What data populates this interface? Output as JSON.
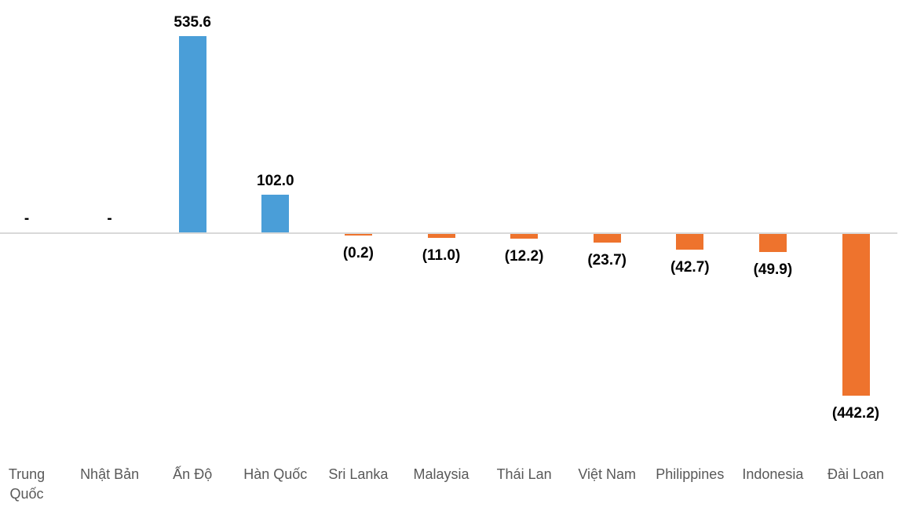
{
  "chart_data": {
    "type": "bar",
    "title": "",
    "categories": [
      "Trung\nQuốc",
      "Nhật Bản",
      "Ấn Độ",
      "Hàn Quốc",
      "Sri Lanka",
      "Malaysia",
      "Thái Lan",
      "Việt Nam",
      "Philippines",
      "Indonesia",
      "Đài Loan"
    ],
    "values": [
      null,
      null,
      535.6,
      102.0,
      -0.2,
      -11.0,
      -12.2,
      -23.7,
      -42.7,
      -49.9,
      -442.2
    ],
    "value_labels": [
      "-",
      "-",
      "535.6",
      "102.0",
      "(0.2)",
      "(11.0)",
      "(12.2)",
      "(23.7)",
      "(42.7)",
      "(49.9)",
      "(442.2)"
    ],
    "missing_placeholder": "-",
    "positive_color": "#4A9ED8",
    "negative_color": "#EE732D",
    "axis_color": "#D9D9D9",
    "value_label_color": "#000000",
    "category_label_color": "#595959",
    "background_color": "#ffffff",
    "xlabel": "",
    "ylabel": "",
    "y_axis_visible": false,
    "grid": false,
    "legend": "none"
  }
}
